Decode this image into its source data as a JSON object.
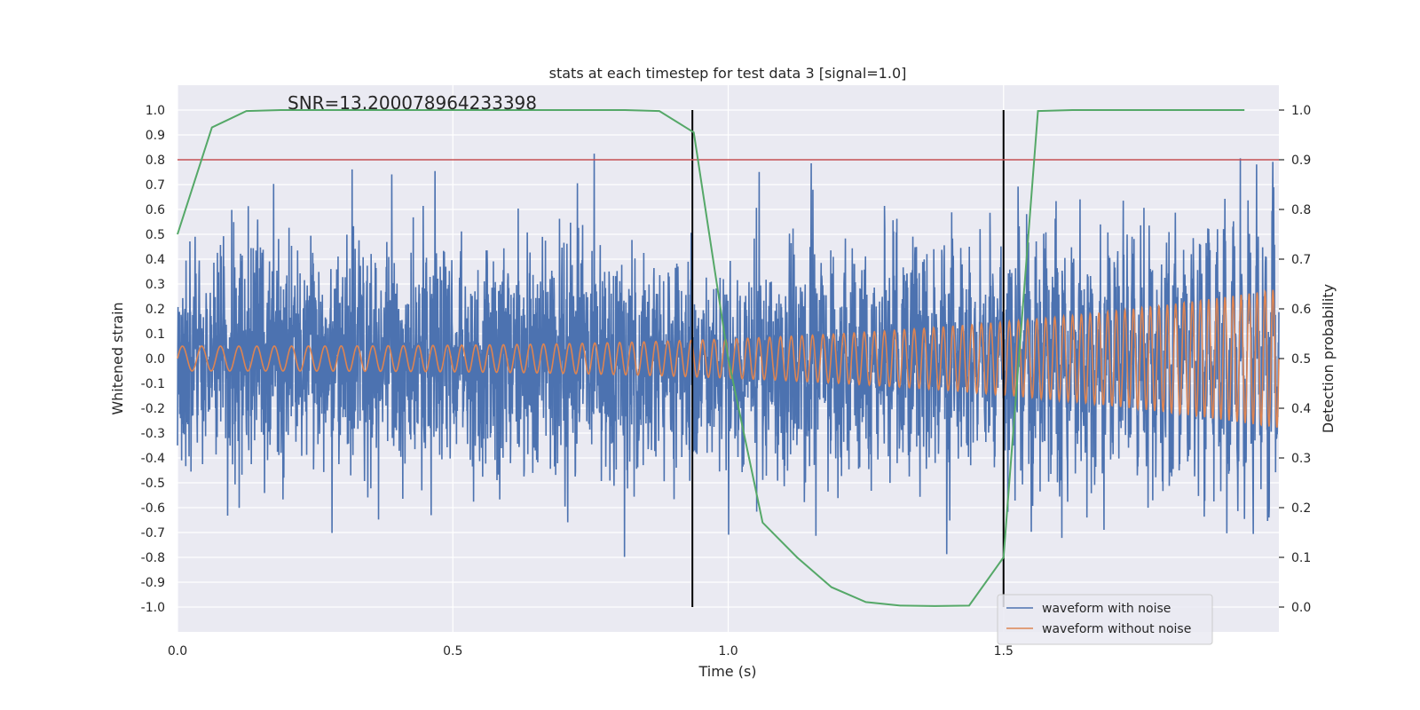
{
  "chart_data": {
    "type": "line",
    "title": "stats at each timestep for test data 3 [signal=1.0]",
    "annotation": "SNR=13.200078964233398",
    "xlabel": "Time (s)",
    "ylabel_left": "Whitened strain",
    "ylabel_right": "Detection probability",
    "xlim": [
      0.0,
      2.0
    ],
    "ylim_left": [
      -1.1,
      1.1
    ],
    "ylim_right": [
      -0.05,
      1.05
    ],
    "x_ticks": [
      "0.0",
      "0.5",
      "1.0",
      "1.5"
    ],
    "y_left_ticks": [
      "1.0",
      "0.9",
      "0.8",
      "0.7",
      "0.6",
      "0.5",
      "0.4",
      "0.3",
      "0.2",
      "0.1",
      "0.0",
      "-0.1",
      "-0.2",
      "-0.3",
      "-0.4",
      "-0.5",
      "-0.6",
      "-0.7",
      "-0.8",
      "-0.9",
      "-1.0"
    ],
    "y_right_ticks": [
      "1.0",
      "0.9",
      "0.8",
      "0.7",
      "0.6",
      "0.5",
      "0.4",
      "0.3",
      "0.2",
      "0.1",
      "0.0"
    ],
    "grid": true,
    "legend_position": "bottom-right",
    "colors": {
      "background": "#eaeaf2",
      "grid": "#ffffff",
      "noise": "#4c72b0",
      "clean": "#dd8452",
      "probability": "#55a868",
      "threshold": "#c44e52",
      "marker": "#000000"
    },
    "threshold_probability": 0.9,
    "vertical_markers": [
      0.935,
      1.5
    ],
    "series": [
      {
        "name": "waveform with noise",
        "axis": "left",
        "description_kind": "noise",
        "envelope": 0.35,
        "n_samples": 4000
      },
      {
        "name": "waveform without noise",
        "axis": "left",
        "kind": "chirp",
        "amp_start": 0.05,
        "amp_end": 0.28,
        "freq_start": 28,
        "freq_end": 70
      },
      {
        "axis": "right",
        "kind": "probability",
        "x": [
          0.0,
          0.0625,
          0.125,
          0.1875,
          0.25,
          0.3125,
          0.375,
          0.4375,
          0.5,
          0.5625,
          0.625,
          0.6875,
          0.75,
          0.8125,
          0.875,
          0.9375,
          1.0,
          1.0625,
          1.125,
          1.1875,
          1.25,
          1.3125,
          1.375,
          1.4375,
          1.5,
          1.5625,
          1.625,
          1.6875,
          1.75,
          1.8125,
          1.875,
          1.9375
        ],
        "values": [
          0.75,
          0.965,
          0.998,
          1.0,
          1.0,
          1.0,
          1.0,
          1.0,
          1.0,
          1.0,
          1.0,
          1.0,
          1.0,
          1.0,
          0.998,
          0.955,
          0.5,
          0.17,
          0.1,
          0.04,
          0.01,
          0.003,
          0.002,
          0.003,
          0.1,
          0.998,
          1.0,
          1.0,
          1.0,
          1.0,
          1.0,
          1.0
        ]
      }
    ]
  }
}
